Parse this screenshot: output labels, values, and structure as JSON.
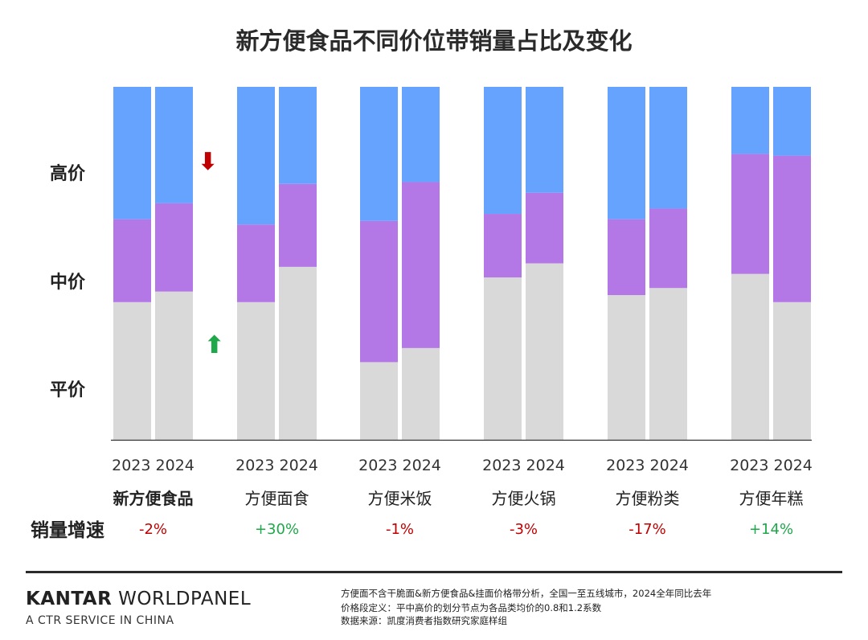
{
  "title": "新方便食品不同价位带销量占比及变化",
  "y_labels": {
    "high": "高价",
    "mid": "中价",
    "low": "平价"
  },
  "growth_label": "销量增速",
  "colors": {
    "high": "#66A3FF",
    "mid": "#B377E6",
    "low": "#D9D9D9",
    "down": "#C00000",
    "up": "#1FA84A"
  },
  "arrows": {
    "down": "⬇",
    "up": "⬆"
  },
  "chart_data": {
    "type": "bar",
    "stacked": true,
    "normalized_to_100": true,
    "title": "新方便食品不同价位带销量占比及变化",
    "categories": [
      "新方便食品",
      "方便面食",
      "方便米饭",
      "方便火锅",
      "方便粉类",
      "方便年糕"
    ],
    "years": [
      "2023",
      "2024"
    ],
    "series": [
      {
        "name": "平价",
        "values_2023": [
          39,
          39,
          22,
          46,
          41,
          47
        ],
        "values_2024": [
          42,
          49,
          26,
          50,
          43,
          39
        ]
      },
      {
        "name": "中价",
        "values_2023": [
          23.5,
          22,
          40,
          18,
          21.5,
          34
        ],
        "values_2024": [
          25,
          23.5,
          47,
          20,
          22.5,
          41.5
        ]
      },
      {
        "name": "高价",
        "values_2023": [
          37.5,
          39,
          38,
          36,
          37.5,
          19
        ],
        "values_2024": [
          33,
          27.5,
          27,
          30,
          34.5,
          19.5
        ]
      }
    ],
    "growth": [
      "-2%",
      "+30%",
      "-1%",
      "-3%",
      "-17%",
      "+14%"
    ],
    "growth_sign": [
      "down",
      "up",
      "down",
      "down",
      "down",
      "up"
    ]
  },
  "footer": {
    "brand_a": "KANTAR",
    "brand_b": " WORLDPANEL",
    "brand_sub": "A CTR SERVICE IN CHINA",
    "note1": "方便面不含干脆面&新方便食品&挂面价格带分析，全国一至五线城市，2024全年同比去年",
    "note2": "价格段定义：平中高价的划分节点为各品类均价的0.8和1.2系数",
    "note3": "数据来源：凯度消费者指数研究家庭样组"
  }
}
